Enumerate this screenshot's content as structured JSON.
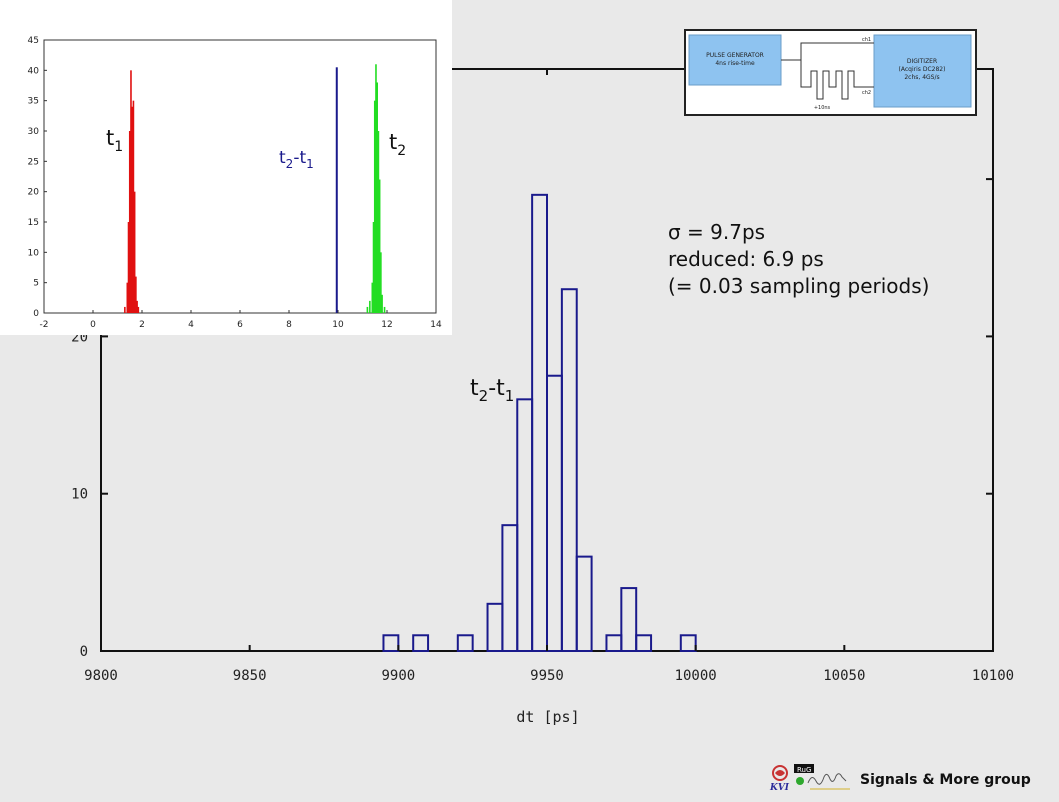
{
  "chart_data": [
    {
      "type": "bar",
      "title": "",
      "xlabel": "dt [ps]",
      "ylabel": "",
      "xlim": [
        9800,
        10100
      ],
      "ylim": [
        0,
        37
      ],
      "xticks": [
        9800,
        9850,
        9900,
        9950,
        10000,
        10050,
        10100
      ],
      "yticks": [
        0,
        10,
        20,
        30
      ],
      "bin_width": 5,
      "annotation": "t2-t1",
      "bins": [
        {
          "x": 9897.5,
          "y": 1
        },
        {
          "x": 9907.5,
          "y": 1
        },
        {
          "x": 9922.5,
          "y": 1
        },
        {
          "x": 9932.5,
          "y": 3
        },
        {
          "x": 9937.5,
          "y": 8
        },
        {
          "x": 9942.5,
          "y": 16
        },
        {
          "x": 9947.5,
          "y": 29
        },
        {
          "x": 9952.5,
          "y": 17.5
        },
        {
          "x": 9957.5,
          "y": 23
        },
        {
          "x": 9962.5,
          "y": 6
        },
        {
          "x": 9972.5,
          "y": 1
        },
        {
          "x": 9977.5,
          "y": 4
        },
        {
          "x": 9982.5,
          "y": 1
        },
        {
          "x": 9997.5,
          "y": 1
        }
      ],
      "colors": {
        "bar_stroke": "#1a1a8c"
      }
    },
    {
      "type": "bar",
      "title": "",
      "xlabel": "",
      "ylabel": "",
      "xlim": [
        -2,
        14
      ],
      "ylim": [
        0,
        45
      ],
      "xticks": [
        -2,
        0,
        2,
        4,
        6,
        8,
        10,
        12,
        14
      ],
      "yticks": [
        0,
        5,
        10,
        15,
        20,
        25,
        30,
        35,
        40,
        45
      ],
      "series": [
        {
          "name": "t1",
          "color": "#e01010",
          "x": [
            1.3,
            1.4,
            1.45,
            1.5,
            1.55,
            1.6,
            1.65,
            1.7,
            1.75,
            1.8,
            1.85
          ],
          "values": [
            1,
            5,
            15,
            30,
            40,
            34,
            35,
            20,
            6,
            2,
            1
          ]
        },
        {
          "name": "t2-t1",
          "color": "#1a1a8c",
          "x": [
            9.95
          ],
          "values": [
            40.5
          ]
        },
        {
          "name": "t2",
          "color": "#22dd22",
          "x": [
            11.2,
            11.3,
            11.4,
            11.45,
            11.5,
            11.55,
            11.6,
            11.65,
            11.7,
            11.75,
            11.8,
            11.9
          ],
          "values": [
            1,
            2,
            5,
            15,
            35,
            41,
            38,
            30,
            22,
            10,
            3,
            1
          ]
        }
      ]
    }
  ],
  "labels": {
    "inset_t1": "t",
    "inset_t1_sub": "1",
    "inset_t2": "t",
    "inset_t2_sub": "2",
    "inset_diff_a": "t",
    "inset_diff_a_sub": "2",
    "inset_diff_dash": "-t",
    "inset_diff_b_sub": "1",
    "main_diff_a": "t",
    "main_diff_a_sub": "2",
    "main_diff_dash": "-t",
    "main_diff_b_sub": "1"
  },
  "stats": {
    "sigma": "σ = 9.7ps",
    "reduced": "reduced: 6.9 ps",
    "periods": "(= 0.03 sampling periods)"
  },
  "schematic": {
    "generator_line1": "PULSE GENERATOR",
    "generator_line2": "4ns rise-time",
    "digitizer_line1": "DIGITIZER",
    "digitizer_line2": "(Acqiris DC282)",
    "digitizer_line3": "2chs, 4GS/s",
    "ch1": "ch1",
    "ch2": "ch2",
    "delay": "+10ns",
    "colors": {
      "box_fill": "#8ec3f0"
    }
  },
  "footer": {
    "text": "Signals & More group",
    "logo_text_a": "KVI",
    "logo_text_b": "RuG"
  }
}
